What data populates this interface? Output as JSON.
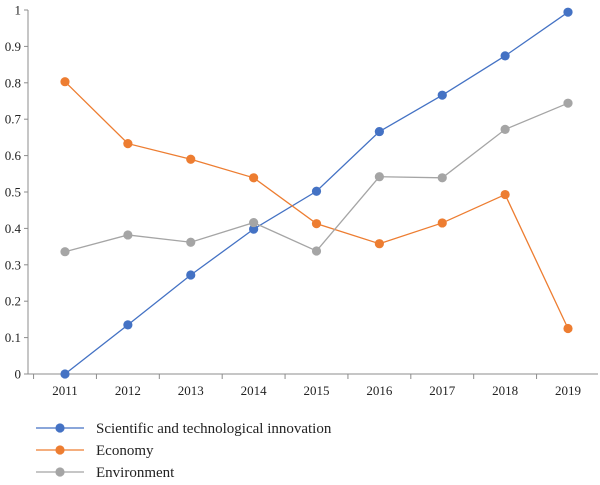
{
  "chart_data": {
    "type": "line",
    "title": "",
    "xlabel": "",
    "ylabel": "",
    "x": [
      "2011",
      "2012",
      "2013",
      "2014",
      "2015",
      "2016",
      "2017",
      "2018",
      "2019"
    ],
    "ylim": [
      0,
      1
    ],
    "yticks": [
      "0",
      "0.1",
      "0.2",
      "0.3",
      "0.4",
      "0.5",
      "0.6",
      "0.7",
      "0.8",
      "0.9",
      "1"
    ],
    "grid": false,
    "legend_position": "bottom-left",
    "series": [
      {
        "name": "Scientific and technological innovation",
        "color": "#4472c4",
        "values": [
          0.0,
          0.135,
          0.272,
          0.398,
          0.502,
          0.666,
          0.766,
          0.874,
          0.994
        ]
      },
      {
        "name": "Economy",
        "color": "#ed7d31",
        "values": [
          0.803,
          0.633,
          0.59,
          0.539,
          0.413,
          0.358,
          0.415,
          0.493,
          0.125
        ]
      },
      {
        "name": "Environment",
        "color": "#a5a5a5",
        "values": [
          0.336,
          0.382,
          0.362,
          0.416,
          0.338,
          0.542,
          0.539,
          0.672,
          0.744
        ]
      }
    ]
  }
}
